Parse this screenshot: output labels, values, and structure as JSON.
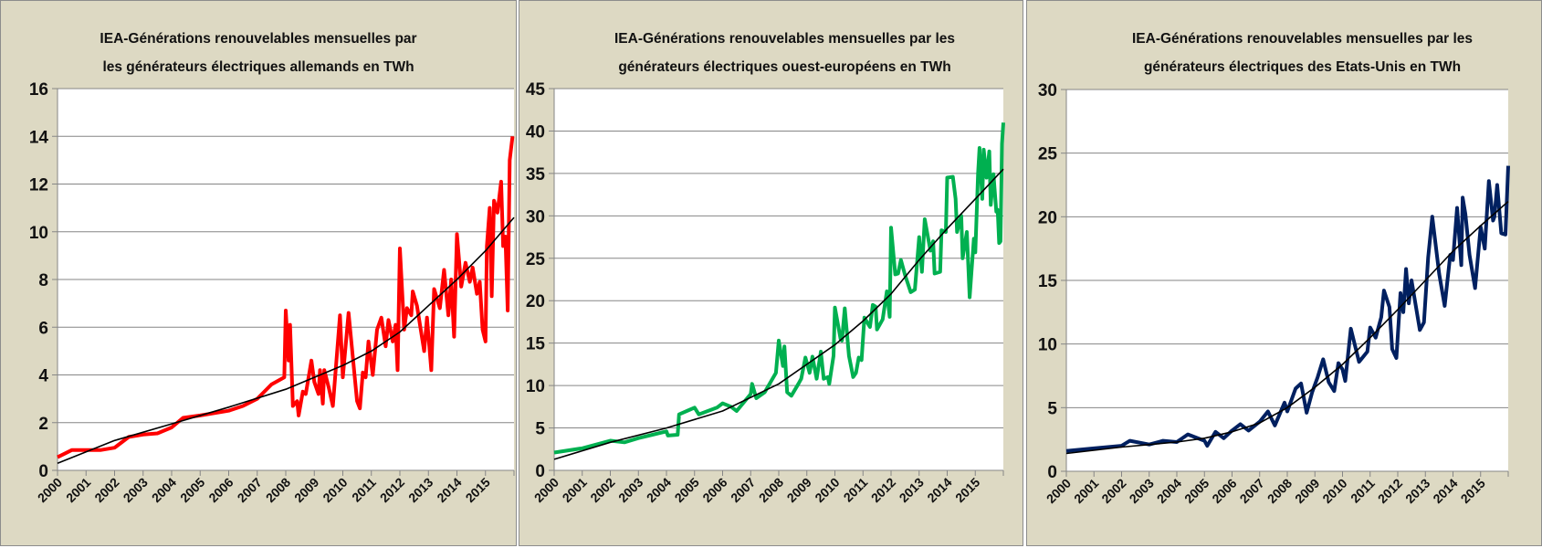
{
  "chart_data": [
    {
      "type": "line",
      "title_line1": "IEA-Générations renouvelables mensuelles par",
      "title_line2": "les générateurs  électriques allemands en TWh",
      "xlim": [
        2000,
        2016
      ],
      "x_tick_labels": [
        "2000",
        "2001",
        "2002",
        "2003",
        "2004",
        "2005",
        "2006",
        "2007",
        "2008",
        "2009",
        "2010",
        "2011",
        "2012",
        "2013",
        "2014",
        "2015"
      ],
      "ylim": [
        0,
        16
      ],
      "y_ticks": [
        "0",
        "2",
        "4",
        "6",
        "8",
        "10",
        "12",
        "14",
        "16"
      ],
      "grid": true,
      "series_color": "#ff0000",
      "trend_color": "#000000",
      "series": [
        [
          2000,
          0.55
        ],
        [
          2000.5,
          0.85
        ],
        [
          2001.5,
          0.85
        ],
        [
          2002,
          0.95
        ],
        [
          2002.5,
          1.4
        ],
        [
          2003,
          1.5
        ],
        [
          2003.5,
          1.55
        ],
        [
          2004,
          1.8
        ],
        [
          2004.4,
          2.2
        ],
        [
          2005,
          2.3
        ],
        [
          2006,
          2.5
        ],
        [
          2006.5,
          2.7
        ],
        [
          2007,
          3.0
        ],
        [
          2007.5,
          3.6
        ],
        [
          2007.95,
          3.9
        ],
        [
          2008,
          6.7
        ],
        [
          2008.1,
          4.6
        ],
        [
          2008.15,
          6.1
        ],
        [
          2008.25,
          2.7
        ],
        [
          2008.4,
          2.9
        ],
        [
          2008.45,
          2.3
        ],
        [
          2008.6,
          3.3
        ],
        [
          2008.7,
          3.2
        ],
        [
          2008.9,
          4.6
        ],
        [
          2009,
          3.7
        ],
        [
          2009.15,
          3.2
        ],
        [
          2009.2,
          4.2
        ],
        [
          2009.3,
          2.8
        ],
        [
          2009.35,
          4.2
        ],
        [
          2009.5,
          3.5
        ],
        [
          2009.65,
          2.7
        ],
        [
          2009.9,
          6.5
        ],
        [
          2010,
          3.9
        ],
        [
          2010.2,
          6.6
        ],
        [
          2010.5,
          2.9
        ],
        [
          2010.6,
          2.6
        ],
        [
          2010.7,
          4.1
        ],
        [
          2010.8,
          3.9
        ],
        [
          2010.9,
          5.4
        ],
        [
          2011.05,
          4.0
        ],
        [
          2011.2,
          5.9
        ],
        [
          2011.35,
          6.4
        ],
        [
          2011.5,
          5.2
        ],
        [
          2011.6,
          6.3
        ],
        [
          2011.75,
          5.4
        ],
        [
          2011.85,
          6.1
        ],
        [
          2011.92,
          4.2
        ],
        [
          2012,
          9.3
        ],
        [
          2012.15,
          5.9
        ],
        [
          2012.25,
          6.8
        ],
        [
          2012.4,
          6.5
        ],
        [
          2012.45,
          7.5
        ],
        [
          2012.6,
          6.9
        ],
        [
          2012.85,
          5.0
        ],
        [
          2012.95,
          6.4
        ],
        [
          2013.1,
          4.2
        ],
        [
          2013.2,
          7.6
        ],
        [
          2013.4,
          6.8
        ],
        [
          2013.55,
          8.4
        ],
        [
          2013.7,
          6.5
        ],
        [
          2013.8,
          8.0
        ],
        [
          2013.9,
          5.6
        ],
        [
          2014,
          9.9
        ],
        [
          2014.15,
          7.7
        ],
        [
          2014.3,
          8.7
        ],
        [
          2014.45,
          7.9
        ],
        [
          2014.55,
          8.5
        ],
        [
          2014.7,
          7.4
        ],
        [
          2014.8,
          7.9
        ],
        [
          2014.9,
          5.9
        ],
        [
          2015,
          5.4
        ],
        [
          2015.05,
          9.4
        ],
        [
          2015.15,
          11.0
        ],
        [
          2015.22,
          7.3
        ],
        [
          2015.3,
          11.3
        ],
        [
          2015.42,
          10.8
        ],
        [
          2015.55,
          12.1
        ],
        [
          2015.62,
          9.4
        ],
        [
          2015.7,
          9.8
        ],
        [
          2015.78,
          6.7
        ],
        [
          2015.85,
          13.0
        ],
        [
          2015.95,
          14.0
        ]
      ],
      "trend": [
        [
          2000,
          0.3
        ],
        [
          2002,
          1.25
        ],
        [
          2004,
          1.95
        ],
        [
          2006,
          2.65
        ],
        [
          2008,
          3.4
        ],
        [
          2010,
          4.4
        ],
        [
          2011,
          5.0
        ],
        [
          2012,
          5.8
        ],
        [
          2013,
          6.9
        ],
        [
          2014,
          8.0
        ],
        [
          2015,
          9.2
        ],
        [
          2016,
          10.6
        ]
      ]
    },
    {
      "type": "line",
      "title_line1": "IEA-Générations renouvelables mensuelles par les",
      "title_line2": "générateurs  électriques ouest-européens  en TWh",
      "xlim": [
        2000,
        2016
      ],
      "x_tick_labels": [
        "2000",
        "2001",
        "2002",
        "2003",
        "2004",
        "2005",
        "2006",
        "2007",
        "2008",
        "2009",
        "2010",
        "2011",
        "2012",
        "2013",
        "2014",
        "2015"
      ],
      "ylim": [
        0,
        45
      ],
      "y_ticks": [
        "0",
        "5",
        "10",
        "15",
        "20",
        "25",
        "30",
        "35",
        "40",
        "45"
      ],
      "grid": true,
      "series_color": "#00b050",
      "trend_color": "#000000",
      "series": [
        [
          2000,
          2.1
        ],
        [
          2001,
          2.6
        ],
        [
          2002,
          3.5
        ],
        [
          2002.5,
          3.3
        ],
        [
          2003,
          3.8
        ],
        [
          2003.5,
          4.2
        ],
        [
          2004,
          4.6
        ],
        [
          2004.05,
          4.1
        ],
        [
          2004.4,
          4.2
        ],
        [
          2004.45,
          6.6
        ],
        [
          2004.8,
          7.1
        ],
        [
          2005,
          7.4
        ],
        [
          2005.15,
          6.6
        ],
        [
          2005.8,
          7.4
        ],
        [
          2006,
          7.9
        ],
        [
          2006.3,
          7.5
        ],
        [
          2006.5,
          7.0
        ],
        [
          2007,
          9.0
        ],
        [
          2007.05,
          10.2
        ],
        [
          2007.2,
          8.5
        ],
        [
          2007.5,
          9.2
        ],
        [
          2007.9,
          11.5
        ],
        [
          2008,
          15.3
        ],
        [
          2008.15,
          12.3
        ],
        [
          2008.2,
          14.6
        ],
        [
          2008.3,
          9.2
        ],
        [
          2008.45,
          8.8
        ],
        [
          2008.7,
          10.2
        ],
        [
          2008.8,
          10.8
        ],
        [
          2008.95,
          13.3
        ],
        [
          2009.1,
          11.5
        ],
        [
          2009.2,
          13.4
        ],
        [
          2009.35,
          10.8
        ],
        [
          2009.5,
          14.0
        ],
        [
          2009.6,
          10.8
        ],
        [
          2009.75,
          11.0
        ],
        [
          2009.8,
          10.2
        ],
        [
          2009.95,
          13.5
        ],
        [
          2010,
          19.2
        ],
        [
          2010.2,
          15.5
        ],
        [
          2010.25,
          15.3
        ],
        [
          2010.35,
          19.1
        ],
        [
          2010.5,
          13.5
        ],
        [
          2010.65,
          11.0
        ],
        [
          2010.75,
          11.5
        ],
        [
          2010.85,
          13.3
        ],
        [
          2010.95,
          13.0
        ],
        [
          2011.05,
          18.0
        ],
        [
          2011.25,
          16.9
        ],
        [
          2011.35,
          19.5
        ],
        [
          2011.45,
          19.3
        ],
        [
          2011.5,
          16.6
        ],
        [
          2011.7,
          17.8
        ],
        [
          2011.85,
          21.1
        ],
        [
          2011.95,
          18.1
        ],
        [
          2012,
          28.6
        ],
        [
          2012.15,
          23.1
        ],
        [
          2012.25,
          23.2
        ],
        [
          2012.35,
          24.8
        ],
        [
          2012.5,
          23.0
        ],
        [
          2012.7,
          21.0
        ],
        [
          2012.85,
          21.3
        ],
        [
          2013,
          27.5
        ],
        [
          2013.1,
          23.4
        ],
        [
          2013.2,
          29.6
        ],
        [
          2013.4,
          25.9
        ],
        [
          2013.5,
          27.0
        ],
        [
          2013.55,
          23.2
        ],
        [
          2013.75,
          23.4
        ],
        [
          2013.8,
          28.3
        ],
        [
          2013.95,
          28.1
        ],
        [
          2014,
          34.5
        ],
        [
          2014.2,
          34.6
        ],
        [
          2014.3,
          32.0
        ],
        [
          2014.35,
          28.1
        ],
        [
          2014.5,
          30.0
        ],
        [
          2014.55,
          25.0
        ],
        [
          2014.7,
          28.1
        ],
        [
          2014.8,
          20.4
        ],
        [
          2014.95,
          27.3
        ],
        [
          2015,
          25.7
        ],
        [
          2015.1,
          35.0
        ],
        [
          2015.15,
          38.0
        ],
        [
          2015.25,
          32.0
        ],
        [
          2015.3,
          37.8
        ],
        [
          2015.4,
          34.5
        ],
        [
          2015.5,
          37.6
        ],
        [
          2015.55,
          31.3
        ],
        [
          2015.65,
          34.9
        ],
        [
          2015.75,
          30.5
        ],
        [
          2015.8,
          30.7
        ],
        [
          2015.85,
          26.8
        ],
        [
          2015.9,
          27.0
        ],
        [
          2015.95,
          38.5
        ],
        [
          2016,
          41.0
        ]
      ],
      "trend": [
        [
          2000,
          1.3
        ],
        [
          2002,
          3.3
        ],
        [
          2004,
          5.0
        ],
        [
          2006,
          7.0
        ],
        [
          2008,
          10.2
        ],
        [
          2010,
          14.8
        ],
        [
          2011,
          17.6
        ],
        [
          2012,
          20.8
        ],
        [
          2013,
          24.8
        ],
        [
          2014,
          28.5
        ],
        [
          2015,
          32.0
        ],
        [
          2016,
          35.5
        ]
      ]
    },
    {
      "type": "line",
      "title_line1": "IEA-Générations renouvelables mensuelles par les",
      "title_line2": "générateurs  électriques des Etats-Unis  en TWh",
      "xlim": [
        2000,
        2016
      ],
      "x_tick_labels": [
        "2000",
        "2001",
        "2002",
        "2003",
        "2004",
        "2005",
        "2006",
        "2007",
        "2008",
        "2009",
        "2010",
        "2011",
        "2012",
        "2013",
        "2014",
        "2015"
      ],
      "ylim": [
        0,
        30
      ],
      "y_ticks": [
        "0",
        "5",
        "10",
        "15",
        "20",
        "25",
        "30"
      ],
      "grid": true,
      "series_color": "#002060",
      "trend_color": "#000000",
      "series": [
        [
          2000,
          1.6
        ],
        [
          2001,
          1.8
        ],
        [
          2002,
          2.0
        ],
        [
          2002.3,
          2.4
        ],
        [
          2003,
          2.1
        ],
        [
          2003.5,
          2.4
        ],
        [
          2004,
          2.3
        ],
        [
          2004.4,
          2.9
        ],
        [
          2005,
          2.4
        ],
        [
          2005.1,
          2.0
        ],
        [
          2005.4,
          3.1
        ],
        [
          2005.7,
          2.6
        ],
        [
          2006,
          3.2
        ],
        [
          2006.3,
          3.7
        ],
        [
          2006.6,
          3.2
        ],
        [
          2007,
          3.9
        ],
        [
          2007.3,
          4.7
        ],
        [
          2007.55,
          3.6
        ],
        [
          2007.9,
          5.4
        ],
        [
          2008,
          4.7
        ],
        [
          2008.3,
          6.5
        ],
        [
          2008.5,
          6.9
        ],
        [
          2008.7,
          4.6
        ],
        [
          2008.9,
          6.2
        ],
        [
          2009.1,
          7.4
        ],
        [
          2009.3,
          8.8
        ],
        [
          2009.5,
          7.0
        ],
        [
          2009.7,
          6.3
        ],
        [
          2009.85,
          8.5
        ],
        [
          2010,
          8.0
        ],
        [
          2010.1,
          7.1
        ],
        [
          2010.3,
          11.2
        ],
        [
          2010.6,
          8.6
        ],
        [
          2010.9,
          9.4
        ],
        [
          2011,
          11.3
        ],
        [
          2011.2,
          10.5
        ],
        [
          2011.4,
          12.1
        ],
        [
          2011.5,
          14.2
        ],
        [
          2011.7,
          12.9
        ],
        [
          2011.8,
          9.6
        ],
        [
          2011.95,
          8.9
        ],
        [
          2012.1,
          14.0
        ],
        [
          2012.2,
          12.5
        ],
        [
          2012.3,
          15.9
        ],
        [
          2012.4,
          13.2
        ],
        [
          2012.5,
          15.0
        ],
        [
          2012.8,
          11.1
        ],
        [
          2012.95,
          11.7
        ],
        [
          2013.1,
          16.8
        ],
        [
          2013.25,
          20.0
        ],
        [
          2013.5,
          15.5
        ],
        [
          2013.7,
          13.0
        ],
        [
          2013.9,
          17.0
        ],
        [
          2014,
          16.6
        ],
        [
          2014.15,
          20.7
        ],
        [
          2014.3,
          16.2
        ],
        [
          2014.35,
          21.5
        ],
        [
          2014.45,
          20.2
        ],
        [
          2014.6,
          17.0
        ],
        [
          2014.8,
          14.4
        ],
        [
          2015,
          19.2
        ],
        [
          2015.15,
          17.5
        ],
        [
          2015.3,
          22.8
        ],
        [
          2015.45,
          19.7
        ],
        [
          2015.5,
          20.0
        ],
        [
          2015.6,
          22.5
        ],
        [
          2015.75,
          18.7
        ],
        [
          2015.9,
          18.6
        ],
        [
          2016,
          24.0
        ]
      ],
      "trend": [
        [
          2000,
          1.4
        ],
        [
          2002,
          1.9
        ],
        [
          2004,
          2.3
        ],
        [
          2005,
          2.6
        ],
        [
          2006,
          3.1
        ],
        [
          2007,
          3.8
        ],
        [
          2008,
          5.0
        ],
        [
          2009,
          6.6
        ],
        [
          2010,
          8.4
        ],
        [
          2011,
          10.5
        ],
        [
          2012,
          12.7
        ],
        [
          2013,
          15.0
        ],
        [
          2014,
          17.3
        ],
        [
          2015,
          19.3
        ],
        [
          2016,
          21.2
        ]
      ]
    }
  ]
}
